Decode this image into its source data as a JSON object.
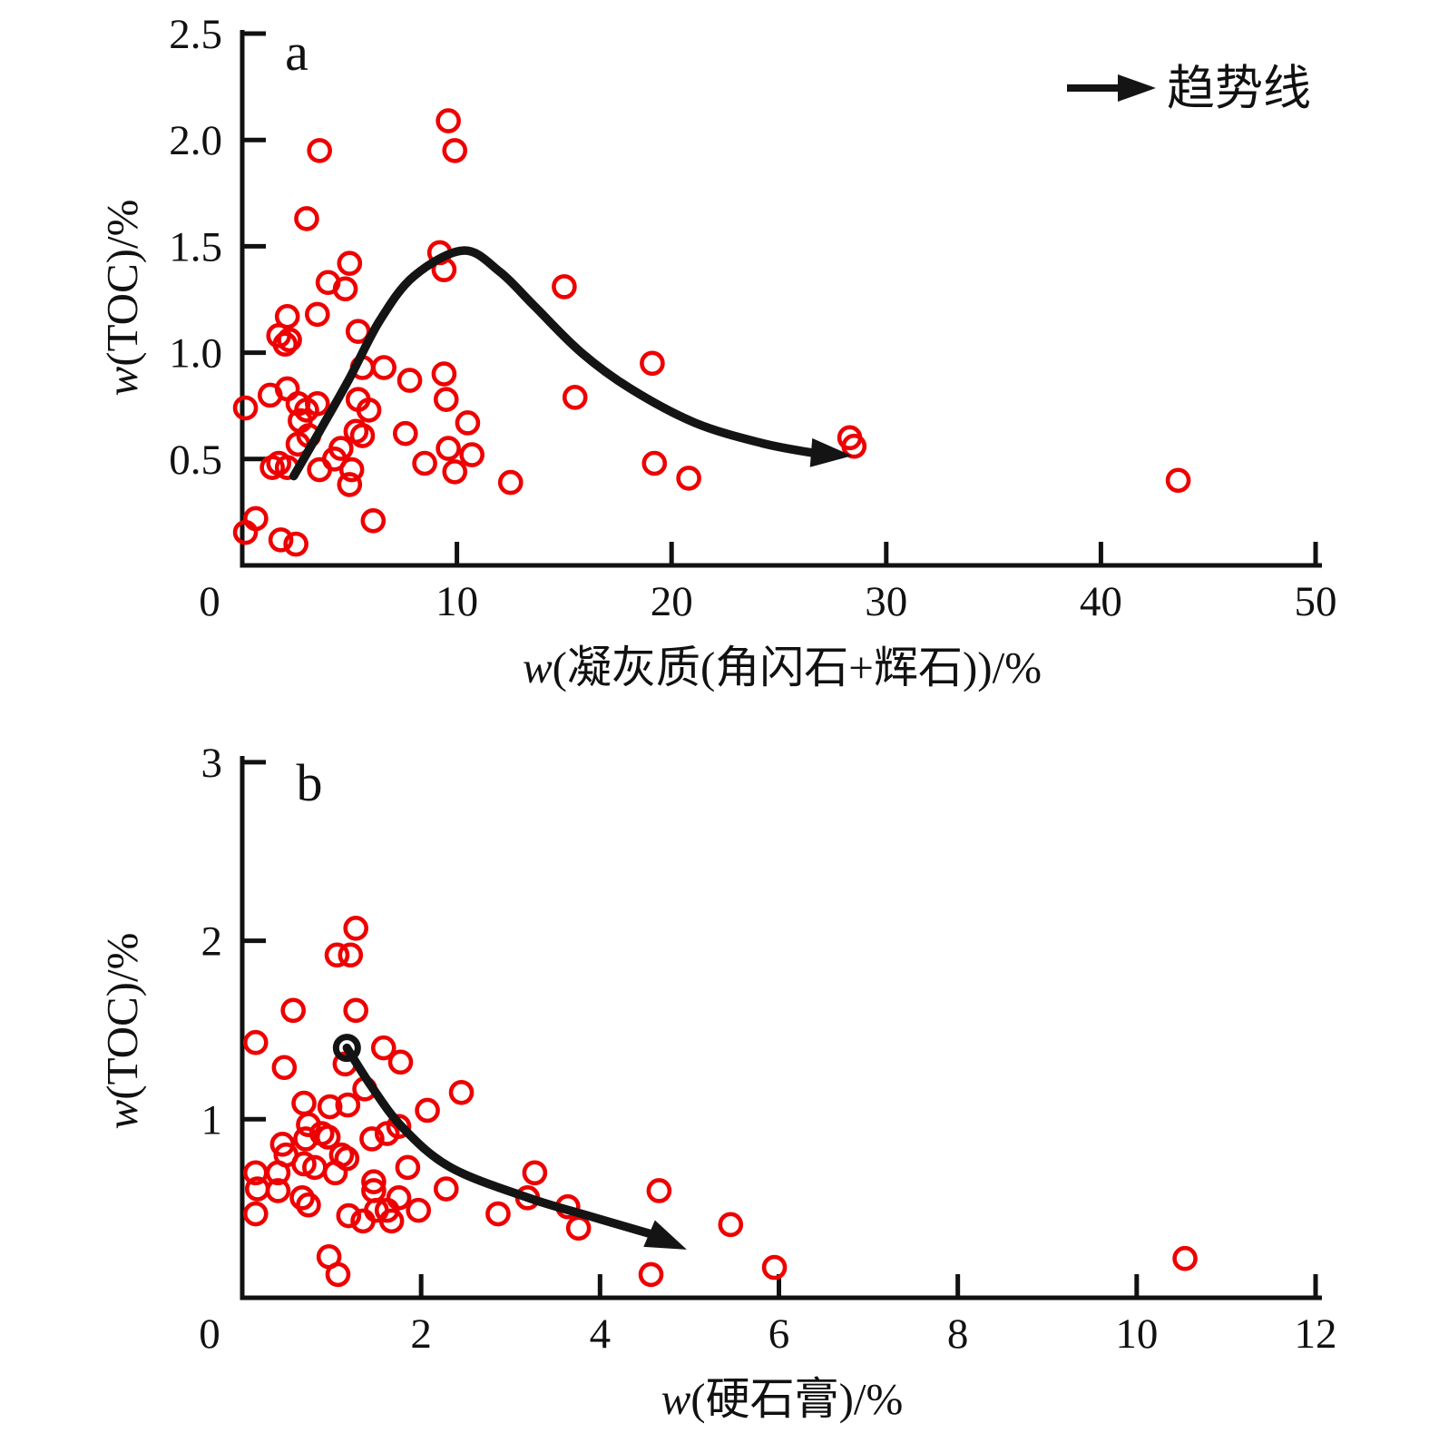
{
  "page": {
    "background": "#ffffff"
  },
  "colors": {
    "marker": "#ee0000",
    "trend": "#141414",
    "axis": "#111111"
  },
  "legend": {
    "label": "趋势线"
  },
  "chart_data": [
    {
      "id": "a",
      "type": "scatter",
      "panel_label": "a",
      "xlabel_w": "w",
      "xlabel_rest": "(凝灰质(角闪石+辉石))/%",
      "ylabel_w": "w",
      "ylabel_rest": "(TOC)/%",
      "xlim": [
        0,
        50
      ],
      "ylim": [
        0,
        2.52
      ],
      "xticks": [
        0,
        10,
        20,
        30,
        40,
        50
      ],
      "xtick_labels": [
        "0",
        "10",
        "20",
        "30",
        "40",
        "50"
      ],
      "yticks": [
        0.5,
        1.0,
        1.5,
        2.0,
        2.5
      ],
      "ytick_labels": [
        "0.5",
        "1.0",
        "1.5",
        "2.0",
        "2.5"
      ],
      "grid": false,
      "legend_visible": true,
      "points": [
        [
          0.15,
          0.74
        ],
        [
          0.15,
          0.155
        ],
        [
          0.63,
          0.22
        ],
        [
          1.3,
          0.8
        ],
        [
          1.4,
          0.46
        ],
        [
          1.7,
          0.48
        ],
        [
          1.7,
          1.08
        ],
        [
          1.8,
          0.12
        ],
        [
          2.0,
          1.04
        ],
        [
          2.1,
          0.83
        ],
        [
          2.1,
          0.46
        ],
        [
          2.2,
          1.06
        ],
        [
          2.1,
          1.17
        ],
        [
          2.5,
          0.1
        ],
        [
          2.6,
          0.57
        ],
        [
          2.6,
          0.76
        ],
        [
          2.7,
          0.68
        ],
        [
          3.0,
          0.73
        ],
        [
          3.0,
          1.63
        ],
        [
          3.1,
          0.61
        ],
        [
          3.5,
          0.76
        ],
        [
          3.5,
          1.18
        ],
        [
          3.6,
          0.45
        ],
        [
          3.6,
          1.95
        ],
        [
          4.0,
          1.33
        ],
        [
          4.3,
          0.5
        ],
        [
          4.6,
          0.55
        ],
        [
          4.8,
          1.3
        ],
        [
          5.0,
          1.42
        ],
        [
          5.0,
          0.38
        ],
        [
          5.1,
          0.45
        ],
        [
          5.3,
          0.63
        ],
        [
          5.4,
          0.78
        ],
        [
          5.4,
          1.1
        ],
        [
          5.6,
          0.61
        ],
        [
          5.6,
          0.93
        ],
        [
          5.9,
          0.73
        ],
        [
          6.1,
          0.21
        ],
        [
          6.6,
          0.93
        ],
        [
          7.6,
          0.62
        ],
        [
          7.8,
          0.87
        ],
        [
          8.5,
          0.48
        ],
        [
          9.2,
          1.47
        ],
        [
          9.4,
          1.39
        ],
        [
          9.4,
          0.9
        ],
        [
          9.5,
          0.78
        ],
        [
          9.6,
          0.55
        ],
        [
          9.6,
          2.09
        ],
        [
          9.9,
          1.95
        ],
        [
          9.9,
          0.44
        ],
        [
          10.5,
          0.67
        ],
        [
          10.7,
          0.52
        ],
        [
          12.5,
          0.39
        ],
        [
          15.0,
          1.31
        ],
        [
          15.5,
          0.79
        ],
        [
          19.1,
          0.95
        ],
        [
          19.2,
          0.48
        ],
        [
          20.8,
          0.41
        ],
        [
          28.3,
          0.6
        ],
        [
          28.5,
          0.56
        ],
        [
          43.6,
          0.4
        ]
      ],
      "trend": {
        "points": [
          [
            2.4,
            0.42
          ],
          [
            3.6,
            0.63
          ],
          [
            5.0,
            0.88
          ],
          [
            6.4,
            1.15
          ],
          [
            8.0,
            1.36
          ],
          [
            10.3,
            1.48
          ],
          [
            12.0,
            1.38
          ],
          [
            13.6,
            1.22
          ],
          [
            15.8,
            1.0
          ],
          [
            18.1,
            0.83
          ],
          [
            21.1,
            0.67
          ],
          [
            24.2,
            0.575
          ],
          [
            26.5,
            0.53
          ]
        ],
        "arrow_tip": [
          28.4,
          0.515
        ],
        "start_marker": false
      }
    },
    {
      "id": "b",
      "type": "scatter",
      "panel_label": "b",
      "xlabel_w": "w",
      "xlabel_rest": "(硬石膏)/%",
      "ylabel_w": "w",
      "ylabel_rest": "(TOC)/%",
      "xlim": [
        0,
        12
      ],
      "ylim": [
        0,
        3.03
      ],
      "xticks": [
        0,
        2,
        4,
        6,
        8,
        10,
        12
      ],
      "xtick_labels": [
        "0",
        "2",
        "4",
        "6",
        "8",
        "10",
        "12"
      ],
      "yticks": [
        1,
        2,
        3
      ],
      "ytick_labels": [
        "1",
        "2",
        "3"
      ],
      "grid": false,
      "legend_visible": false,
      "points": [
        [
          0.15,
          1.43
        ],
        [
          0.15,
          0.7
        ],
        [
          0.17,
          0.61
        ],
        [
          0.15,
          0.47
        ],
        [
          0.45,
          0.86
        ],
        [
          0.47,
          1.29
        ],
        [
          0.49,
          0.8
        ],
        [
          0.4,
          0.7
        ],
        [
          0.4,
          0.6
        ],
        [
          0.57,
          1.61
        ],
        [
          0.69,
          1.09
        ],
        [
          0.71,
          0.89
        ],
        [
          0.74,
          0.97
        ],
        [
          0.69,
          0.75
        ],
        [
          0.67,
          0.56
        ],
        [
          0.74,
          0.52
        ],
        [
          0.81,
          0.73
        ],
        [
          0.89,
          0.92
        ],
        [
          0.96,
          0.9
        ],
        [
          0.98,
          1.07
        ],
        [
          0.97,
          0.23
        ],
        [
          1.04,
          0.7
        ],
        [
          1.06,
          1.92
        ],
        [
          1.07,
          0.13
        ],
        [
          1.15,
          1.31
        ],
        [
          1.11,
          0.8
        ],
        [
          1.18,
          1.08
        ],
        [
          1.17,
          0.78
        ],
        [
          1.19,
          0.46
        ],
        [
          1.21,
          1.92
        ],
        [
          1.27,
          2.07
        ],
        [
          1.27,
          1.61
        ],
        [
          1.35,
          0.43
        ],
        [
          1.37,
          1.17
        ],
        [
          1.45,
          0.89
        ],
        [
          1.47,
          0.65
        ],
        [
          1.47,
          0.6
        ],
        [
          1.5,
          0.49
        ],
        [
          1.58,
          1.4
        ],
        [
          1.62,
          0.92
        ],
        [
          1.62,
          0.49
        ],
        [
          1.67,
          0.43
        ],
        [
          1.75,
          0.96
        ],
        [
          1.75,
          0.56
        ],
        [
          1.77,
          1.32
        ],
        [
          1.85,
          0.73
        ],
        [
          1.97,
          0.49
        ],
        [
          2.07,
          1.05
        ],
        [
          2.28,
          0.61
        ],
        [
          2.45,
          1.15
        ],
        [
          2.86,
          0.47
        ],
        [
          3.19,
          0.56
        ],
        [
          3.27,
          0.7
        ],
        [
          3.64,
          0.51
        ],
        [
          3.76,
          0.39
        ],
        [
          4.57,
          0.13
        ],
        [
          4.66,
          0.6
        ],
        [
          5.46,
          0.41
        ],
        [
          5.95,
          0.17
        ],
        [
          10.54,
          0.22
        ]
      ],
      "trend": {
        "points": [
          [
            1.17,
            1.4
          ],
          [
            1.45,
            1.18
          ],
          [
            1.8,
            0.95
          ],
          [
            2.33,
            0.73
          ],
          [
            3.2,
            0.56
          ],
          [
            3.9,
            0.455
          ],
          [
            4.55,
            0.36
          ]
        ],
        "arrow_tip": [
          4.97,
          0.27
        ],
        "start_marker": true
      }
    }
  ]
}
